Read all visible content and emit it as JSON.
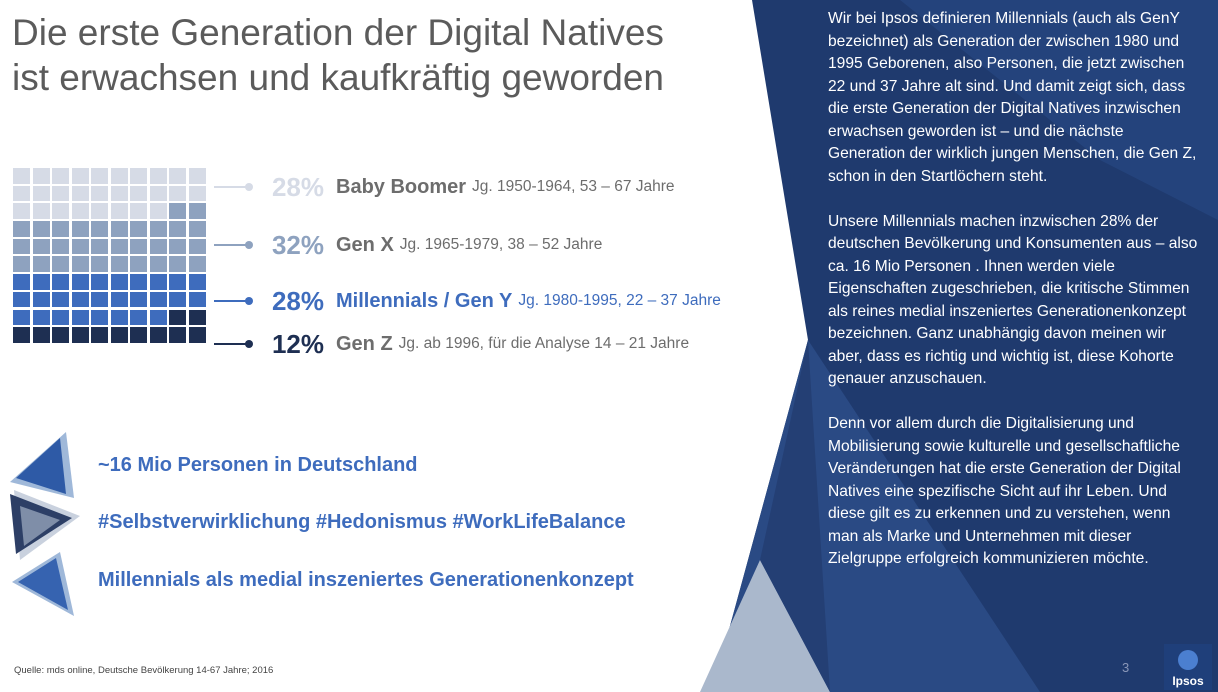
{
  "title": {
    "line1": "Die erste Generation der Digital Natives",
    "line2": "ist erwachsen und kaufkräftig geworden"
  },
  "waffle": {
    "total_cells": 100,
    "groups": [
      {
        "name": "Baby Boomer",
        "count": 28,
        "color": "#d6dbe6"
      },
      {
        "name": "Gen X",
        "count": 32,
        "color": "#8ea2bf"
      },
      {
        "name": "Millennials / Gen Y",
        "count": 28,
        "color": "#3e6cbd"
      },
      {
        "name": "Gen Z",
        "count": 12,
        "color": "#1e2f52"
      }
    ]
  },
  "legend": [
    {
      "pct": "28%",
      "gen": "Baby Boomer",
      "years": "Jg. 1950-1964, 53 – 67 Jahre",
      "pct_color": "#d6dbe6",
      "gen_color": "#6d6d6d",
      "years_color": "#6d6d6d",
      "line_color": "#d6dbe6"
    },
    {
      "pct": "32%",
      "gen": "Gen X",
      "years": "Jg. 1965-1979, 38 – 52 Jahre",
      "pct_color": "#8ea2bf",
      "gen_color": "#6d6d6d",
      "years_color": "#6d6d6d",
      "line_color": "#8ea2bf"
    },
    {
      "pct": "28%",
      "gen": "Millennials / Gen Y",
      "years": "Jg. 1980-1995, 22 – 37 Jahre",
      "pct_color": "#3e6cbd",
      "gen_color": "#3e6cbd",
      "years_color": "#3e6cbd",
      "line_color": "#3e6cbd"
    },
    {
      "pct": "12%",
      "gen": "Gen Z",
      "years": "Jg. ab 1996, für die Analyse 14 – 21 Jahre",
      "pct_color": "#1e2f52",
      "gen_color": "#6d6d6d",
      "years_color": "#6d6d6d",
      "line_color": "#1e2f52"
    }
  ],
  "bullets": [
    "~16 Mio Personen in Deutschland",
    "#Selbstverwirklichung #Hedonismus #WorkLifeBalance",
    "Millennials als medial inszeniertes Generationenkonzept"
  ],
  "source": "Quelle: mds online, Deutsche Bevölkerung 14-67 Jahre; 2016",
  "panel": {
    "paragraphs": [
      "Wir bei Ipsos definieren Millennials (auch als GenY bezeichnet) als Generation der zwischen 1980 und 1995 Geborenen, also Personen, die jetzt  zwischen 22 und 37 Jahre alt sind. Und damit zeigt sich, dass die erste Generation der Digital Natives inzwischen erwachsen geworden ist – und die nächste Generation der wirklich jungen Menschen, die Gen Z, schon in den Startlöchern steht.",
      "Unsere Millennials machen inzwischen 28% der deutschen Bevölkerung und Konsumenten aus – also ca. 16 Mio Personen . Ihnen werden viele Eigenschaften zugeschrieben, die kritische Stimmen als reines medial inszeniertes Generationenkonzept bezeichnen. Ganz unabhängig davon meinen wir aber, dass es richtig und wichtig ist, diese Kohorte genauer anzuschauen.",
      "Denn vor allem durch die Digitalisierung und Mobilisierung sowie kulturelle und gesellschaftliche Veränderungen hat die erste Generation der Digital Natives eine spezifische Sicht auf ihr Leben. Und diese gilt es zu erkennen und zu verstehen, wenn man als Marke und Unternehmen mit dieser Zielgruppe erfolgreich kommunizieren möchte."
    ],
    "page_number": "3",
    "logo_text": "Ipsos",
    "colors": {
      "navy": "#1f3a6e",
      "mid": "#2e4d86",
      "light": "#aab8cc"
    }
  }
}
